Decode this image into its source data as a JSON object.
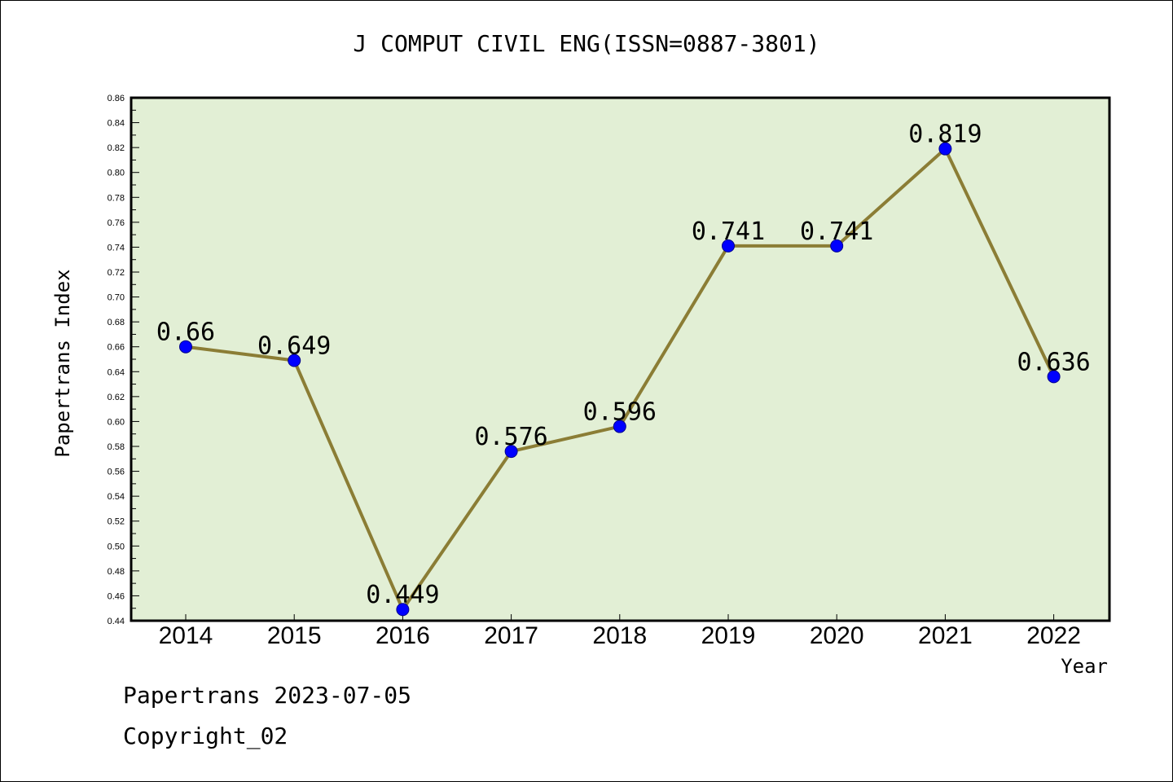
{
  "chart_data": {
    "type": "line",
    "title": "J COMPUT CIVIL ENG(ISSN=0887-3801)",
    "xlabel": "Year",
    "ylabel": "Papertrans Index",
    "categories": [
      "2014",
      "2015",
      "2016",
      "2017",
      "2018",
      "2019",
      "2020",
      "2021",
      "2022"
    ],
    "series": [
      {
        "values": [
          0.66,
          0.649,
          0.449,
          0.576,
          0.596,
          0.741,
          0.741,
          0.819,
          0.636
        ]
      }
    ],
    "data_labels": [
      "0.66",
      "0.649",
      "0.449",
      "0.576",
      "0.596",
      "0.741",
      "0.741",
      "0.819",
      "0.636"
    ],
    "ylim": [
      0.44,
      0.86
    ],
    "yticks": [
      "0.44",
      "0.46",
      "0.48",
      "0.50",
      "0.52",
      "0.54",
      "0.56",
      "0.58",
      "0.60",
      "0.62",
      "0.64",
      "0.66",
      "0.68",
      "0.70",
      "0.72",
      "0.74",
      "0.76",
      "0.78",
      "0.80",
      "0.82",
      "0.84",
      "0.86"
    ],
    "grid": false,
    "legend": "none",
    "colors": {
      "plot_background": "#e2efd5",
      "line": "#8b7d35",
      "marker": "#0000ff"
    }
  },
  "footer": {
    "date_text": "Papertrans 2023-07-05",
    "copyright_text": "Copyright_02"
  }
}
